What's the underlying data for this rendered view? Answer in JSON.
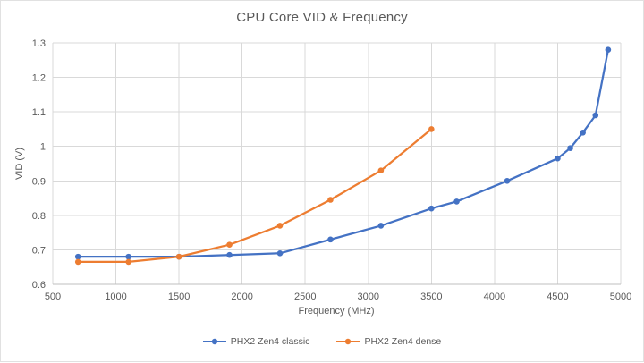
{
  "window": {
    "background": "#FFFFFF",
    "border_color": "#E1E1E1"
  },
  "chart_data": {
    "type": "line",
    "title": "CPU Core VID & Frequency",
    "xlabel": "Frequency (MHz)",
    "ylabel": "VID (V)",
    "xlim": [
      500,
      5000
    ],
    "ylim": [
      0.6,
      1.3
    ],
    "x_ticks": [
      500,
      1000,
      1500,
      2000,
      2500,
      3000,
      3500,
      4000,
      4500,
      5000
    ],
    "y_ticks": [
      0.6,
      0.7,
      0.8,
      0.9,
      1,
      1.1,
      1.2,
      1.3
    ],
    "y_tick_labels": [
      "0.6",
      "0.7",
      "0.8",
      "0.9",
      "1",
      "1.1",
      "1.2",
      "1.3"
    ],
    "grid": true,
    "legend_position": "bottom",
    "text_color": "#595959",
    "gridline_color": "#D9D9D9",
    "axis_line_color": "#BFBFBF",
    "marker_style": "circle",
    "series": [
      {
        "name": "PHX2 Zen4 classic",
        "color": "#4472C4",
        "x": [
          700,
          1100,
          1500,
          1900,
          2300,
          2700,
          3100,
          3500,
          3700,
          4100,
          4500,
          4600,
          4700,
          4800,
          4900
        ],
        "y": [
          0.68,
          0.68,
          0.68,
          0.685,
          0.69,
          0.73,
          0.77,
          0.82,
          0.84,
          0.9,
          0.965,
          0.995,
          1.04,
          1.09,
          1.28
        ]
      },
      {
        "name": "PHX2 Zen4 dense",
        "color": "#ED7D31",
        "x": [
          700,
          1100,
          1500,
          1900,
          2300,
          2700,
          3100,
          3500
        ],
        "y": [
          0.665,
          0.665,
          0.68,
          0.715,
          0.77,
          0.845,
          0.93,
          1.05
        ]
      }
    ]
  }
}
